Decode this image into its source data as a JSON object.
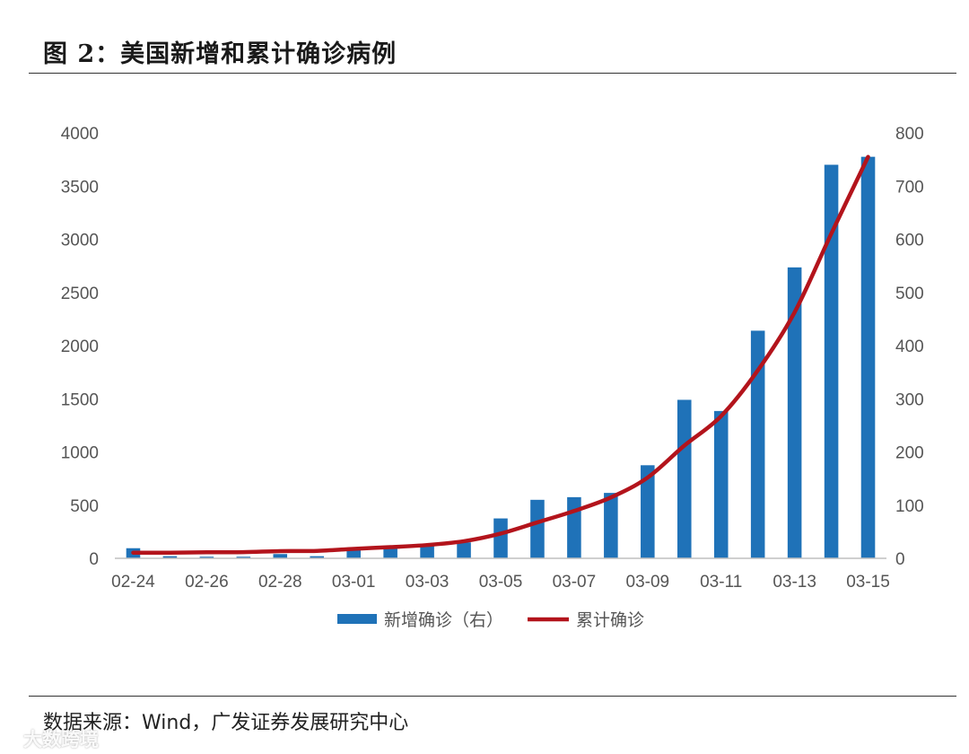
{
  "header": {
    "title": "图 2：美国新增和累计确诊病例"
  },
  "footer": {
    "source": "数据来源：Wind，广发证券发展研究中心",
    "watermark": "大数跨境"
  },
  "colors": {
    "bar": "#1f72b8",
    "line": "#b3141c",
    "axis": "#bfbfbf",
    "text": "#555555"
  },
  "chart_data": {
    "type": "bar",
    "title": "美国新增和累计确诊病例",
    "categories": [
      "02-24",
      "02-25",
      "02-26",
      "02-27",
      "02-28",
      "02-29",
      "03-01",
      "03-02",
      "03-03",
      "03-04",
      "03-05",
      "03-06",
      "03-07",
      "03-08",
      "03-09",
      "03-10",
      "03-11",
      "03-12",
      "03-13",
      "03-14",
      "03-15"
    ],
    "x_tick_labels": [
      "02-24",
      "02-26",
      "02-28",
      "03-01",
      "03-03",
      "03-05",
      "03-07",
      "03-09",
      "03-11",
      "03-13",
      "03-15"
    ],
    "series": [
      {
        "name": "新增确诊（右）",
        "type": "bar",
        "axis": "right",
        "values": [
          19,
          4,
          3,
          3,
          8,
          4,
          20,
          22,
          25,
          30,
          75,
          110,
          115,
          123,
          175,
          298,
          277,
          428,
          547,
          740,
          755
        ]
      },
      {
        "name": "累计确诊",
        "type": "line",
        "axis": "left",
        "values": [
          53,
          53,
          57,
          58,
          68,
          70,
          89,
          105,
          125,
          161,
          233,
          338,
          445,
          572,
          759,
          1060,
          1337,
          1767,
          2313,
          3053,
          3774
        ]
      }
    ],
    "left_axis": {
      "ylim": [
        0,
        4000
      ],
      "ticks": [
        0,
        500,
        1000,
        1500,
        2000,
        2500,
        3000,
        3500,
        4000
      ]
    },
    "right_axis": {
      "ylim": [
        0,
        800
      ],
      "ticks": [
        0,
        100,
        200,
        300,
        400,
        500,
        600,
        700,
        800
      ]
    },
    "legend": {
      "position": "bottom",
      "entries": [
        "新增确诊（右）",
        "累计确诊"
      ]
    },
    "grid": false
  }
}
